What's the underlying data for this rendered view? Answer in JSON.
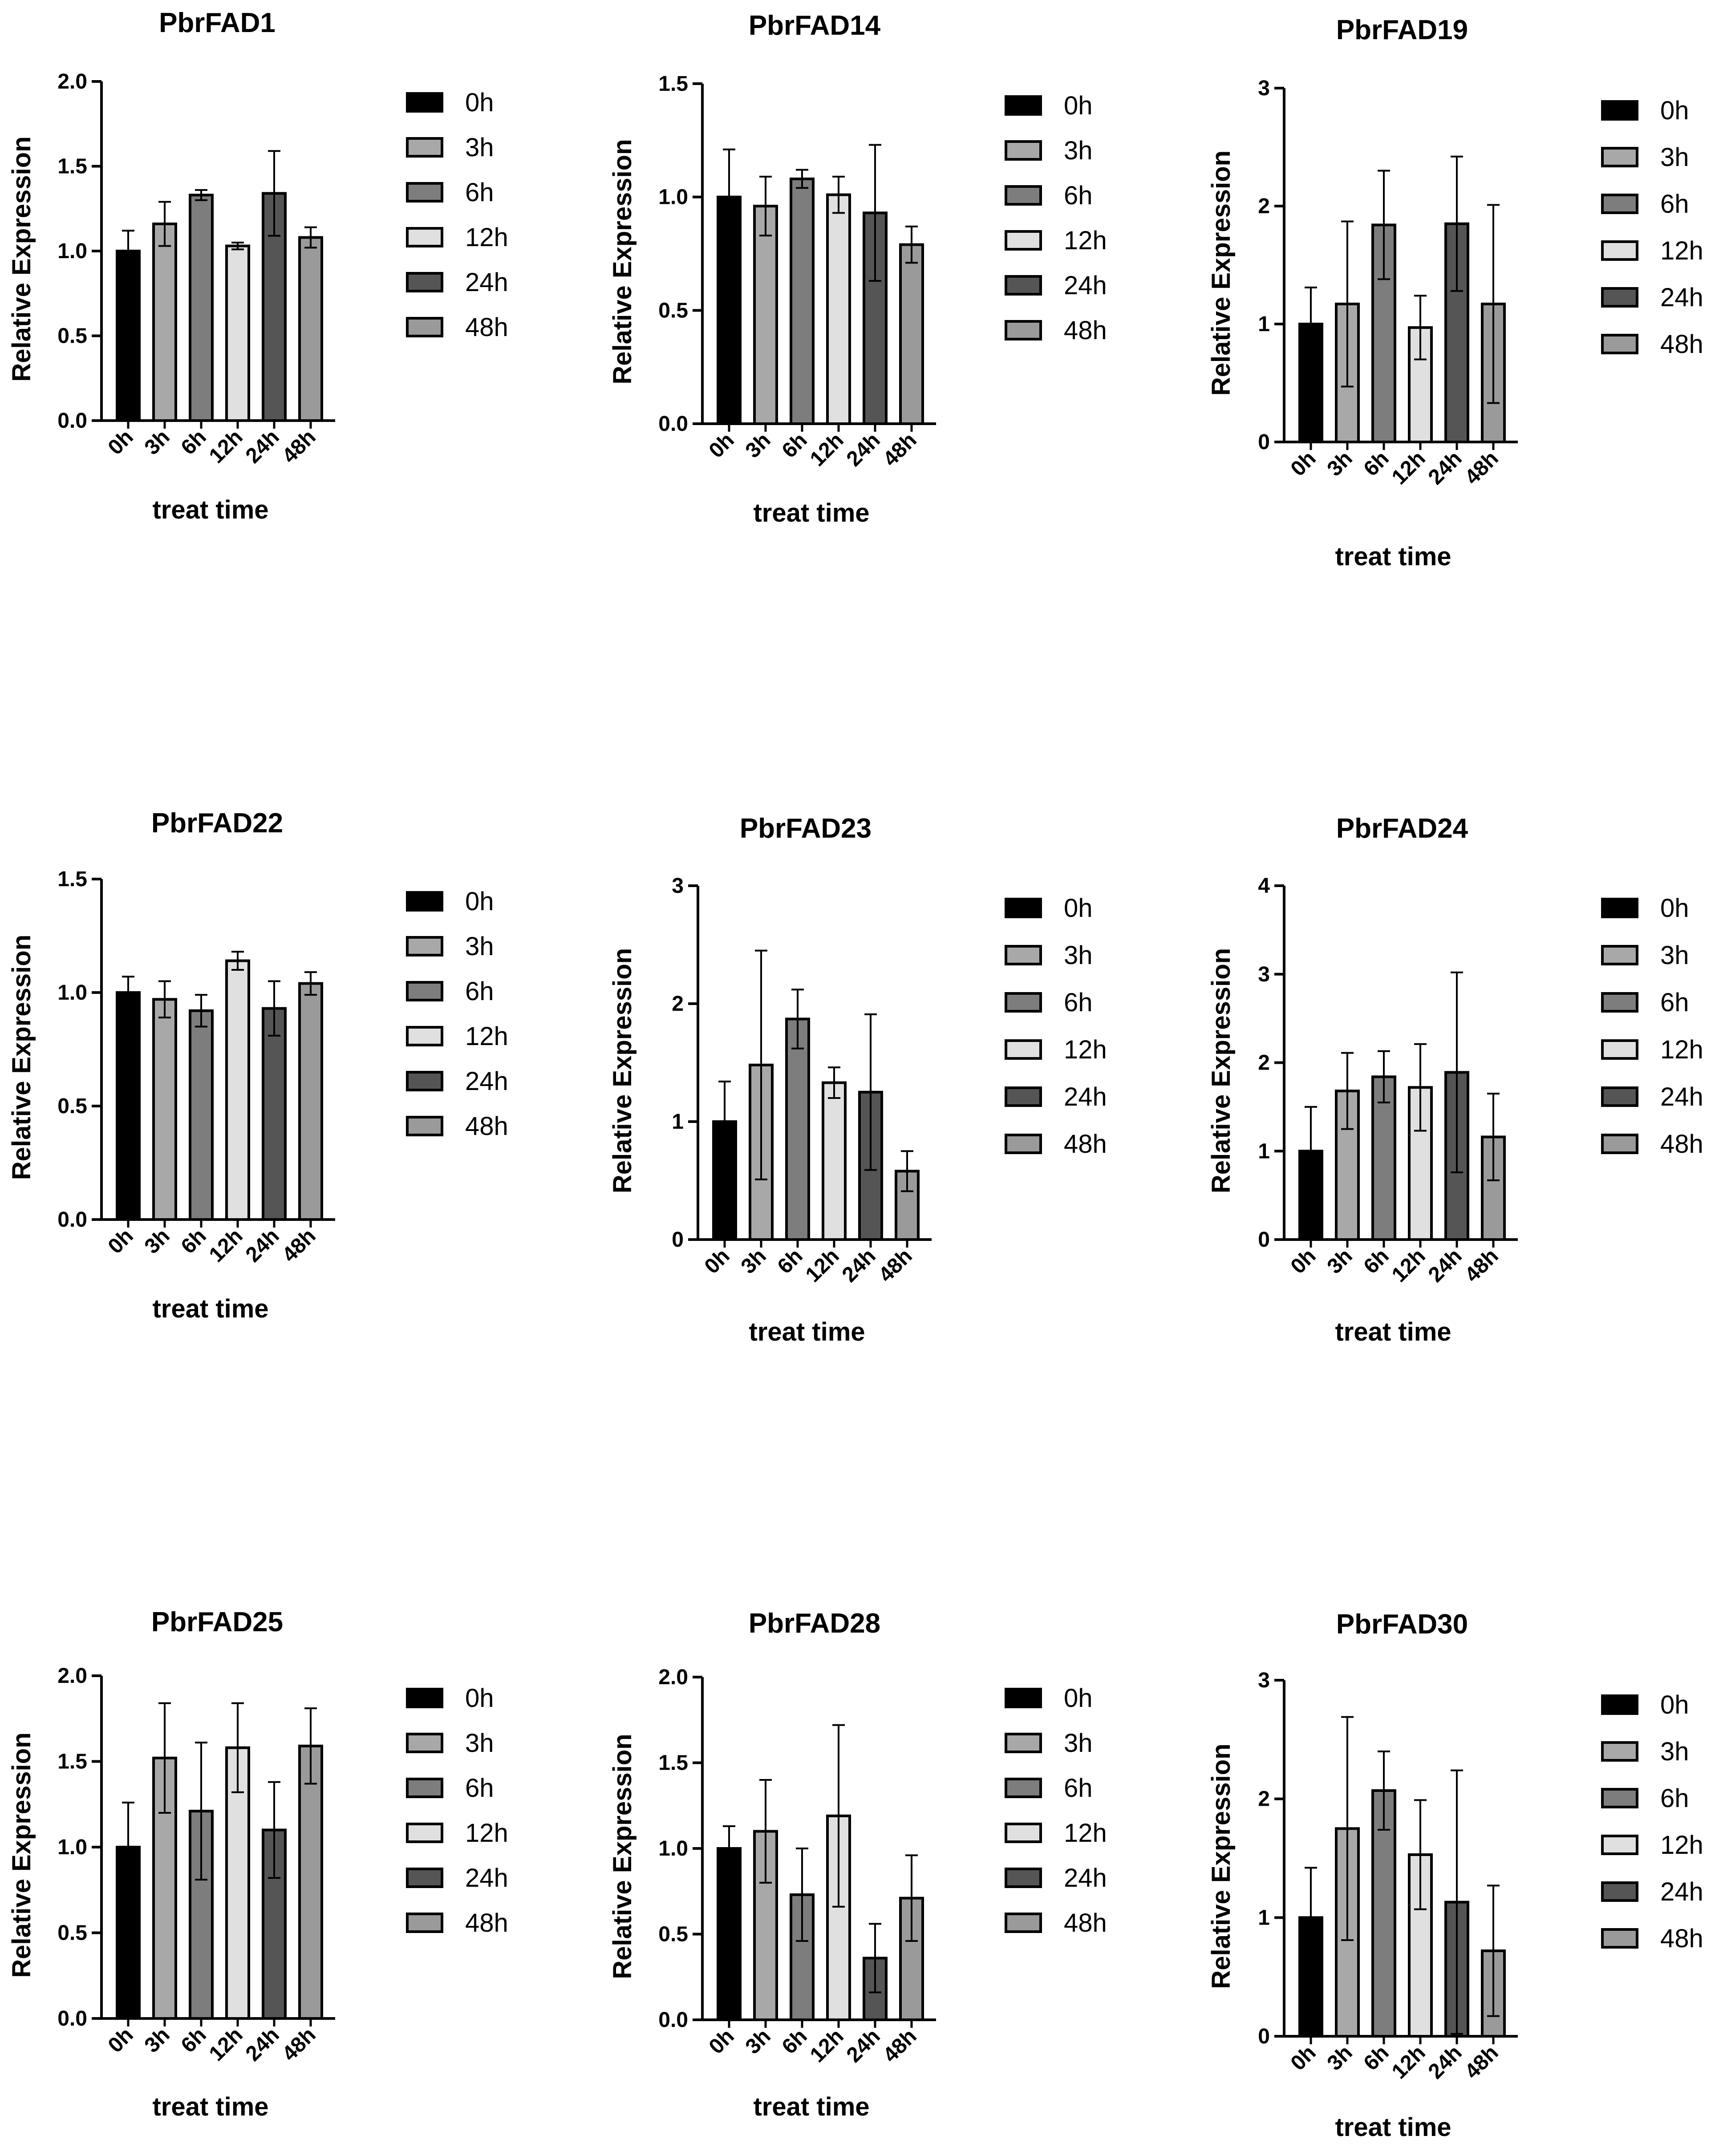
{
  "colors": {
    "0h": "#000000",
    "3h": "#a8a8a8",
    "6h": "#7d7d7d",
    "12h": "#e0e0e0",
    "24h": "#555555",
    "48h": "#9a9a9a"
  },
  "chart_data": [
    {
      "type": "bar",
      "title": "PbrFAD1",
      "xlabel": "treat time",
      "ylabel": "Relative Expression",
      "categories": [
        "0h",
        "3h",
        "6h",
        "12h",
        "24h",
        "48h"
      ],
      "values": [
        1.0,
        1.16,
        1.33,
        1.03,
        1.34,
        1.08
      ],
      "errors": [
        0.12,
        0.13,
        0.03,
        0.02,
        0.25,
        0.06
      ],
      "ylim": [
        0,
        2.0
      ],
      "yticks": [
        "0.0",
        "0.5",
        "1.0",
        "1.5",
        "2.0"
      ],
      "legend": "right"
    },
    {
      "type": "bar",
      "title": "PbrFAD14",
      "xlabel": "treat time",
      "ylabel": "Relative Expression",
      "categories": [
        "0h",
        "3h",
        "6h",
        "12h",
        "24h",
        "48h"
      ],
      "values": [
        1.0,
        0.96,
        1.08,
        1.01,
        0.93,
        0.79
      ],
      "errors": [
        0.21,
        0.13,
        0.04,
        0.08,
        0.3,
        0.08
      ],
      "ylim": [
        0,
        1.5
      ],
      "yticks": [
        "0.0",
        "0.5",
        "1.0",
        "1.5"
      ],
      "legend": "right"
    },
    {
      "type": "bar",
      "title": "PbrFAD19",
      "xlabel": "treat time",
      "ylabel": "Relative Expression",
      "categories": [
        "0h",
        "3h",
        "6h",
        "12h",
        "24h",
        "48h"
      ],
      "values": [
        1.0,
        1.17,
        1.84,
        0.97,
        1.85,
        1.17
      ],
      "errors": [
        0.31,
        0.7,
        0.46,
        0.27,
        0.57,
        0.84
      ],
      "ylim": [
        0,
        3
      ],
      "yticks": [
        "0",
        "1",
        "2",
        "3"
      ],
      "legend": "right"
    },
    {
      "type": "bar",
      "title": "PbrFAD22",
      "xlabel": "treat time",
      "ylabel": "Relative Expression",
      "categories": [
        "0h",
        "3h",
        "6h",
        "12h",
        "24h",
        "48h"
      ],
      "values": [
        1.0,
        0.97,
        0.92,
        1.14,
        0.93,
        1.04
      ],
      "errors": [
        0.07,
        0.08,
        0.07,
        0.04,
        0.12,
        0.05
      ],
      "ylim": [
        0,
        1.5
      ],
      "yticks": [
        "0.0",
        "0.5",
        "1.0",
        "1.5"
      ],
      "legend": "right"
    },
    {
      "type": "bar",
      "title": "PbrFAD23",
      "xlabel": "treat time",
      "ylabel": "Relative Expression",
      "categories": [
        "0h",
        "3h",
        "6h",
        "12h",
        "24h",
        "48h"
      ],
      "values": [
        1.0,
        1.48,
        1.87,
        1.33,
        1.25,
        0.58
      ],
      "errors": [
        0.34,
        0.97,
        0.25,
        0.13,
        0.66,
        0.17
      ],
      "ylim": [
        0,
        3
      ],
      "yticks": [
        "0",
        "1",
        "2",
        "3"
      ],
      "legend": "right"
    },
    {
      "type": "bar",
      "title": "PbrFAD24",
      "xlabel": "treat time",
      "ylabel": "Relative Expression",
      "categories": [
        "0h",
        "3h",
        "6h",
        "12h",
        "24h",
        "48h"
      ],
      "values": [
        1.0,
        1.68,
        1.84,
        1.72,
        1.89,
        1.16
      ],
      "errors": [
        0.5,
        0.43,
        0.29,
        0.49,
        1.13,
        0.49
      ],
      "ylim": [
        0,
        4
      ],
      "yticks": [
        "0",
        "1",
        "2",
        "3",
        "4"
      ],
      "legend": "right"
    },
    {
      "type": "bar",
      "title": "PbrFAD25",
      "xlabel": "treat time",
      "ylabel": "Relative Expression",
      "categories": [
        "0h",
        "3h",
        "6h",
        "12h",
        "24h",
        "48h"
      ],
      "values": [
        1.0,
        1.52,
        1.21,
        1.58,
        1.1,
        1.59
      ],
      "errors": [
        0.26,
        0.32,
        0.4,
        0.26,
        0.28,
        0.22
      ],
      "ylim": [
        0,
        2.0
      ],
      "yticks": [
        "0.0",
        "0.5",
        "1.0",
        "1.5",
        "2.0"
      ],
      "legend": "right"
    },
    {
      "type": "bar",
      "title": "PbrFAD28",
      "xlabel": "treat time",
      "ylabel": "Relative Expression",
      "categories": [
        "0h",
        "3h",
        "6h",
        "12h",
        "24h",
        "48h"
      ],
      "values": [
        1.0,
        1.1,
        0.73,
        1.19,
        0.36,
        0.71
      ],
      "errors": [
        0.13,
        0.3,
        0.27,
        0.53,
        0.2,
        0.25
      ],
      "ylim": [
        0,
        2.0
      ],
      "yticks": [
        "0.0",
        "0.5",
        "1.0",
        "1.5",
        "2.0"
      ],
      "legend": "right"
    },
    {
      "type": "bar",
      "title": "PbrFAD30",
      "xlabel": "treat time",
      "ylabel": "Relative Expression",
      "categories": [
        "0h",
        "3h",
        "6h",
        "12h",
        "24h",
        "48h"
      ],
      "values": [
        1.0,
        1.75,
        2.07,
        1.53,
        1.13,
        0.72
      ],
      "errors": [
        0.42,
        0.94,
        0.33,
        0.46,
        1.11,
        0.55
      ],
      "ylim": [
        0,
        3
      ],
      "yticks": [
        "0",
        "1",
        "2",
        "3"
      ],
      "legend": "right"
    }
  ]
}
